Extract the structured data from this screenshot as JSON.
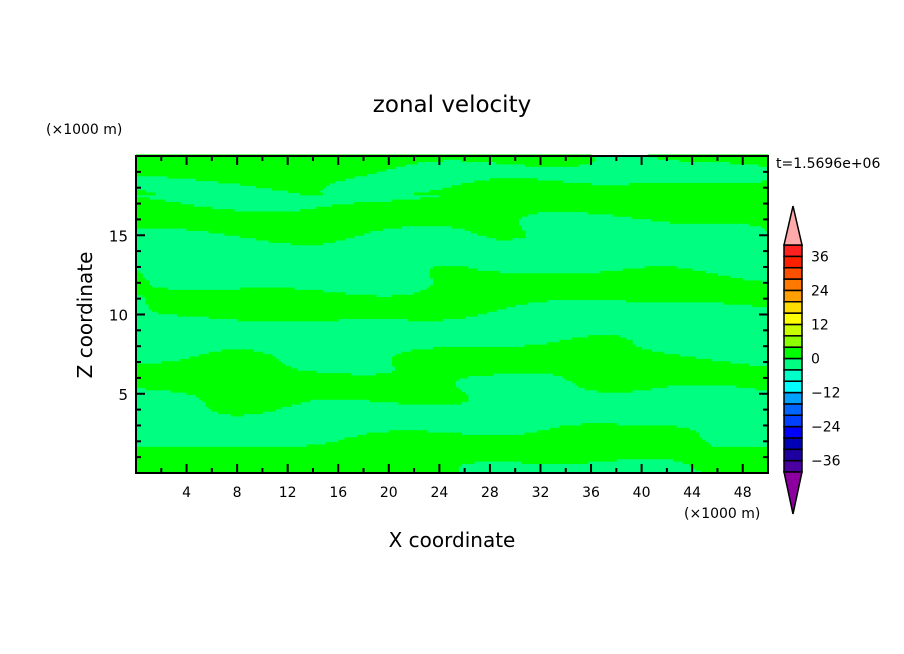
{
  "chart_data": {
    "type": "heatmap",
    "subtype": "filled-contour",
    "title": "zonal velocity",
    "xlabel": "X coordinate",
    "ylabel": "Z coordinate",
    "x_unit": "(×1000 m)",
    "y_unit": "(×1000 m)",
    "time_label": "t=1.5696e+06",
    "xlim": [
      0,
      50
    ],
    "ylim": [
      0,
      20
    ],
    "x_ticks": [
      4,
      8,
      12,
      16,
      20,
      24,
      28,
      32,
      36,
      40,
      44,
      48
    ],
    "y_ticks": [
      5,
      10,
      15
    ],
    "grid": false,
    "field_description_levels_present": [
      "-4 to 0",
      "0 to 4"
    ],
    "colorbar": {
      "placement": "right",
      "levels": [
        -40,
        -36,
        -32,
        -28,
        -24,
        -20,
        -16,
        -12,
        -8,
        -4,
        0,
        4,
        8,
        12,
        16,
        20,
        24,
        28,
        32,
        36,
        40
      ],
      "tick_labels": [
        "36",
        "24",
        "12",
        "0",
        "−12",
        "−24",
        "−36"
      ],
      "tick_values": [
        36,
        24,
        12,
        0,
        -12,
        -24,
        -36
      ],
      "colors_low_to_high": [
        "#4b00a0",
        "#1e00a0",
        "#0000b4",
        "#0000ff",
        "#0040ff",
        "#0064ff",
        "#00a0ff",
        "#00ffff",
        "#00ffc8",
        "#00ff80",
        "#00ff00",
        "#8cff00",
        "#c8ff00",
        "#ffff00",
        "#ffdc00",
        "#ffa000",
        "#ff7800",
        "#ff5000",
        "#ff2000",
        "#ff2020"
      ],
      "under_color": "#8c00a0",
      "over_color": "#ffaaaa",
      "extend": "both"
    }
  }
}
